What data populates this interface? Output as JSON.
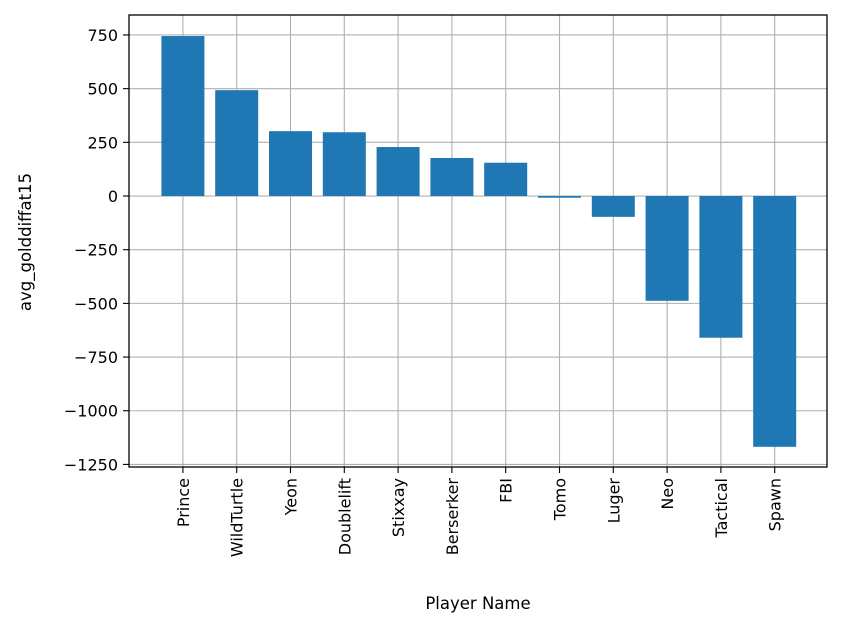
{
  "chart_data": {
    "type": "bar",
    "title": "",
    "xlabel": "Player Name",
    "ylabel": "avg_golddiffat15",
    "categories": [
      "Prince",
      "WildTurtle",
      "Yeon",
      "Doublelift",
      "Stixxay",
      "Berserker",
      "FBI",
      "Tomo",
      "Luger",
      "Neo",
      "Tactical",
      "Spawn"
    ],
    "values": [
      745,
      493,
      302,
      297,
      228,
      177,
      155,
      -8,
      -97,
      -488,
      -660,
      -1168
    ],
    "ylim": [
      -1262,
      843
    ],
    "yticks": [
      750,
      500,
      250,
      0,
      -250,
      -500,
      -750,
      -1000,
      -1250
    ],
    "ytick_labels": [
      "750",
      "500",
      "250",
      "0",
      "−250",
      "−500",
      "−750",
      "−1000",
      "−1250"
    ],
    "grid": true,
    "bar_color": "#1f77b4"
  }
}
